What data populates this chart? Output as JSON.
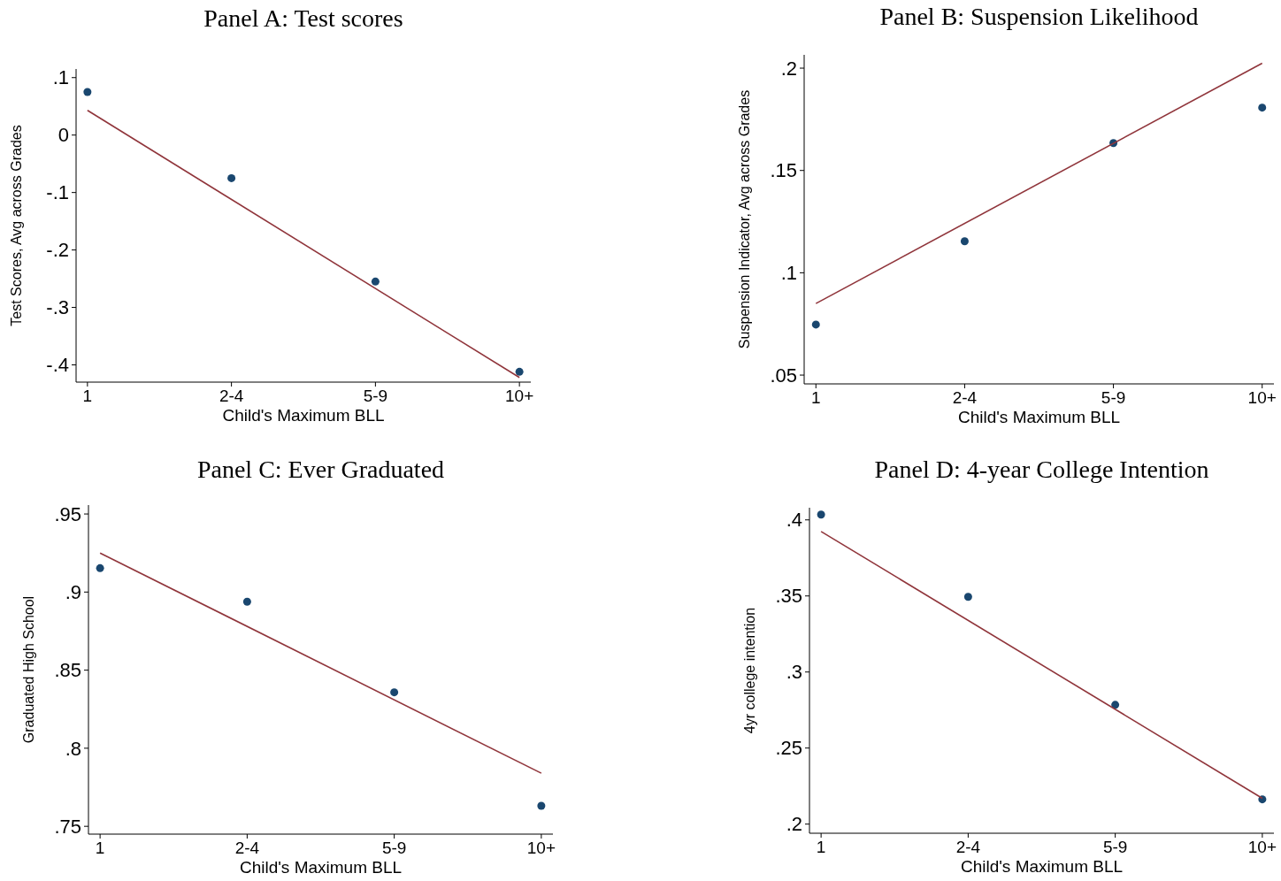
{
  "chart_data": [
    {
      "type": "scatter",
      "title": "Panel A: Test scores",
      "xlabel": "Child's Maximum BLL",
      "ylabel": "Test Scores, Avg across Grades",
      "categories": [
        "1",
        "2-4",
        "5-9",
        "10+"
      ],
      "ylim": [
        -0.43,
        0.115
      ],
      "yticks": [
        {
          "value": 0.1,
          "label": ".1"
        },
        0,
        {
          "value": -0.1,
          "label": "-.1"
        },
        {
          "value": -0.2,
          "label": "-.2"
        },
        {
          "value": -0.3,
          "label": "-.3"
        },
        {
          "value": -0.4,
          "label": "-.4"
        }
      ],
      "grid": false,
      "series": [
        {
          "type": "scatter",
          "marker": "circle",
          "color": "#1a476f",
          "x": [
            "1",
            "2-4",
            "5-9",
            "10+"
          ],
          "values": [
            0.075,
            -0.075,
            -0.255,
            -0.412
          ]
        },
        {
          "type": "line",
          "color": "#90353b",
          "x": [
            "1",
            "10+"
          ],
          "values": [
            0.043,
            -0.422
          ]
        }
      ]
    },
    {
      "type": "scatter",
      "title": "Panel B: Suspension Likelihood",
      "xlabel": "Child's Maximum BLL",
      "ylabel": "Suspension Indicator, Avg across Grades",
      "categories": [
        "1",
        "2-4",
        "5-9",
        "10+"
      ],
      "ylim": [
        0.0457,
        0.2065
      ],
      "yticks": [
        {
          "value": 0.2,
          "label": ".2"
        },
        {
          "value": 0.15,
          "label": ".15"
        },
        {
          "value": 0.1,
          "label": ".1"
        },
        {
          "value": 0.05,
          "label": ".05"
        }
      ],
      "grid": false,
      "series": [
        {
          "type": "scatter",
          "marker": "circle",
          "color": "#1a476f",
          "x": [
            "1",
            "2-4",
            "5-9",
            "10+"
          ],
          "values": [
            0.0747,
            0.1154,
            0.1634,
            0.1807
          ]
        },
        {
          "type": "line",
          "color": "#90353b",
          "x": [
            "1",
            "10+"
          ],
          "values": [
            0.085,
            0.2024
          ]
        }
      ]
    },
    {
      "type": "scatter",
      "title": "Panel C: Ever Graduated",
      "xlabel": "Child's Maximum BLL",
      "ylabel": "Graduated High School",
      "categories": [
        "1",
        "2-4",
        "5-9",
        "10+"
      ],
      "ylim": [
        0.745,
        0.9557
      ],
      "yticks": [
        {
          "value": 0.95,
          "label": ".95"
        },
        {
          "value": 0.9,
          "label": ".9"
        },
        {
          "value": 0.85,
          "label": ".85"
        },
        {
          "value": 0.8,
          "label": ".8"
        },
        {
          "value": 0.75,
          "label": ".75"
        }
      ],
      "grid": false,
      "series": [
        {
          "type": "scatter",
          "marker": "circle",
          "color": "#1a476f",
          "x": [
            "1",
            "2-4",
            "5-9",
            "10+"
          ],
          "values": [
            0.9153,
            0.8938,
            0.8358,
            0.7631
          ]
        },
        {
          "type": "line",
          "color": "#90353b",
          "x": [
            "1",
            "10+"
          ],
          "values": [
            0.925,
            0.784
          ]
        }
      ]
    },
    {
      "type": "scatter",
      "title": "Panel D: 4-year College Intention",
      "xlabel": "Child's Maximum BLL",
      "ylabel": "4yr college intention",
      "categories": [
        "1",
        "2-4",
        "5-9",
        "10+"
      ],
      "ylim": [
        0.194,
        0.408
      ],
      "yticks": [
        {
          "value": 0.4,
          "label": ".4"
        },
        {
          "value": 0.35,
          "label": ".35"
        },
        {
          "value": 0.3,
          "label": ".3"
        },
        {
          "value": 0.25,
          "label": ".25"
        },
        {
          "value": 0.2,
          "label": ".2"
        }
      ],
      "grid": false,
      "series": [
        {
          "type": "scatter",
          "marker": "circle",
          "color": "#1a476f",
          "x": [
            "1",
            "2-4",
            "5-9",
            "10+"
          ],
          "values": [
            0.4035,
            0.3494,
            0.2784,
            0.2163
          ]
        },
        {
          "type": "line",
          "color": "#90353b",
          "x": [
            "1",
            "10+"
          ],
          "values": [
            0.3924,
            0.217
          ]
        }
      ]
    }
  ]
}
